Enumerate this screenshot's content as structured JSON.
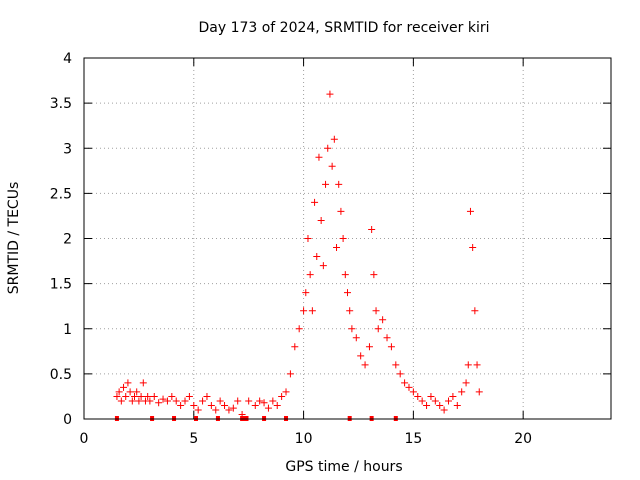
{
  "chart_data": {
    "type": "scatter",
    "title": "Day 173 of 2024, SRMTID for receiver kiri",
    "xlabel": "GPS time / hours",
    "ylabel": "SRMTID / TECUs",
    "xlim": [
      0,
      24
    ],
    "ylim": [
      0,
      4
    ],
    "xticks": [
      0,
      5,
      10,
      15,
      20
    ],
    "yticks": [
      0,
      0.5,
      1,
      1.5,
      2,
      2.5,
      3,
      3.5,
      4
    ],
    "xtick_labels": [
      "0",
      "5",
      "10",
      "15",
      "20"
    ],
    "ytick_labels": [
      "0",
      "0.5",
      "1",
      "1.5",
      "2",
      "2.5",
      "3",
      "3.5",
      "4"
    ],
    "grid": true,
    "marker": "+",
    "color": "#ff0000",
    "series": [
      {
        "name": "SRMTID",
        "x": [
          1.5,
          1.6,
          1.7,
          1.8,
          1.9,
          2.0,
          2.1,
          2.2,
          2.3,
          2.4,
          2.5,
          2.6,
          2.7,
          2.8,
          2.9,
          3.0,
          3.2,
          3.4,
          3.6,
          3.8,
          4.0,
          4.2,
          4.4,
          4.6,
          4.8,
          5.0,
          5.2,
          5.4,
          5.6,
          5.8,
          6.0,
          6.2,
          6.4,
          6.6,
          6.8,
          7.0,
          7.2,
          7.5,
          7.8,
          8.0,
          8.2,
          8.4,
          8.6,
          8.8,
          9.0,
          9.2,
          9.4,
          9.6,
          9.8,
          10.0,
          10.1,
          10.2,
          10.3,
          10.4,
          10.5,
          10.6,
          10.7,
          10.8,
          10.9,
          11.0,
          11.1,
          11.2,
          11.3,
          11.4,
          11.5,
          11.6,
          11.7,
          11.8,
          11.9,
          12.0,
          12.1,
          12.2,
          12.4,
          12.6,
          12.8,
          13.0,
          13.1,
          13.2,
          13.3,
          13.4,
          13.6,
          13.8,
          14.0,
          14.2,
          14.4,
          14.6,
          14.8,
          15.0,
          15.2,
          15.4,
          15.6,
          15.8,
          16.0,
          16.2,
          16.4,
          16.6,
          16.8,
          17.0,
          17.2,
          17.4,
          17.5,
          17.6,
          17.7,
          17.8,
          17.9,
          18.0
        ],
        "y": [
          0.25,
          0.3,
          0.2,
          0.35,
          0.25,
          0.4,
          0.3,
          0.2,
          0.25,
          0.3,
          0.2,
          0.25,
          0.4,
          0.2,
          0.25,
          0.2,
          0.25,
          0.18,
          0.22,
          0.2,
          0.25,
          0.2,
          0.15,
          0.2,
          0.25,
          0.15,
          0.1,
          0.2,
          0.25,
          0.15,
          0.1,
          0.2,
          0.15,
          0.1,
          0.12,
          0.2,
          0.05,
          0.2,
          0.15,
          0.2,
          0.18,
          0.12,
          0.2,
          0.15,
          0.25,
          0.3,
          0.5,
          0.8,
          1.0,
          1.2,
          1.4,
          2.0,
          1.6,
          1.2,
          2.4,
          1.8,
          2.9,
          2.2,
          1.7,
          2.6,
          3.0,
          3.6,
          2.8,
          3.1,
          1.9,
          2.6,
          2.3,
          2.0,
          1.6,
          1.4,
          1.2,
          1.0,
          0.9,
          0.7,
          0.6,
          0.8,
          2.1,
          1.6,
          1.2,
          1.0,
          1.1,
          0.9,
          0.8,
          0.6,
          0.5,
          0.4,
          0.35,
          0.3,
          0.25,
          0.2,
          0.15,
          0.25,
          0.2,
          0.15,
          0.1,
          0.2,
          0.25,
          0.15,
          0.3,
          0.4,
          0.6,
          2.3,
          1.9,
          1.2,
          0.6,
          0.3
        ]
      }
    ],
    "x_markers": [
      1.5,
      3.1,
      4.1,
      5.1,
      6.1,
      7.2,
      7.25,
      7.3,
      7.35,
      7.4,
      8.2,
      9.2,
      12.1,
      13.1,
      14.2
    ]
  }
}
